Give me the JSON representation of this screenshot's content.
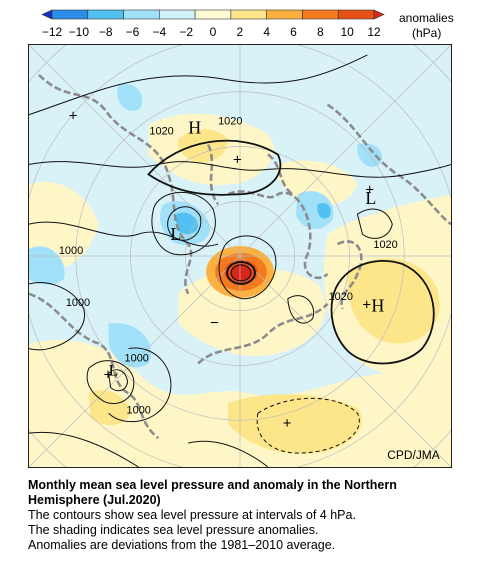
{
  "colorbar": {
    "ticks": [
      "−12",
      "−10",
      "−8",
      "−6",
      "−4",
      "−2",
      "0",
      "2",
      "4",
      "6",
      "8",
      "10",
      "12"
    ],
    "unit_label": "anomalies",
    "unit": "(hPa)",
    "colors": [
      "#1432c8",
      "#2c8ee8",
      "#52c0f0",
      "#a0e0f8",
      "#d2f2fa",
      "#fffbd2",
      "#fde68a",
      "#fbb040",
      "#f47a20",
      "#e8501a",
      "#d8261a"
    ]
  },
  "map": {
    "high_labels": [
      "H",
      "H"
    ],
    "low_labels": [
      "L",
      "L",
      "L"
    ],
    "plus_marks": [
      "+",
      "+",
      "+",
      "+",
      "+",
      "+"
    ],
    "minus_marks": [
      "−"
    ],
    "contour_labels": [
      "1020",
      "1020",
      "1020",
      "1020",
      "1000",
      "1000",
      "1000",
      "1000"
    ],
    "credit": "CPD/JMA"
  },
  "caption": {
    "title_line1": "Monthly mean sea level pressure and anomaly in the Northern",
    "title_line2": "Hemisphere (Jul.2020)",
    "line1": "The contours show sea level pressure at intervals of 4 hPa.",
    "line2": "The shading indicates sea level pressure anomalies.",
    "line3": "Anomalies are deviations from the 1981–2010 average."
  }
}
